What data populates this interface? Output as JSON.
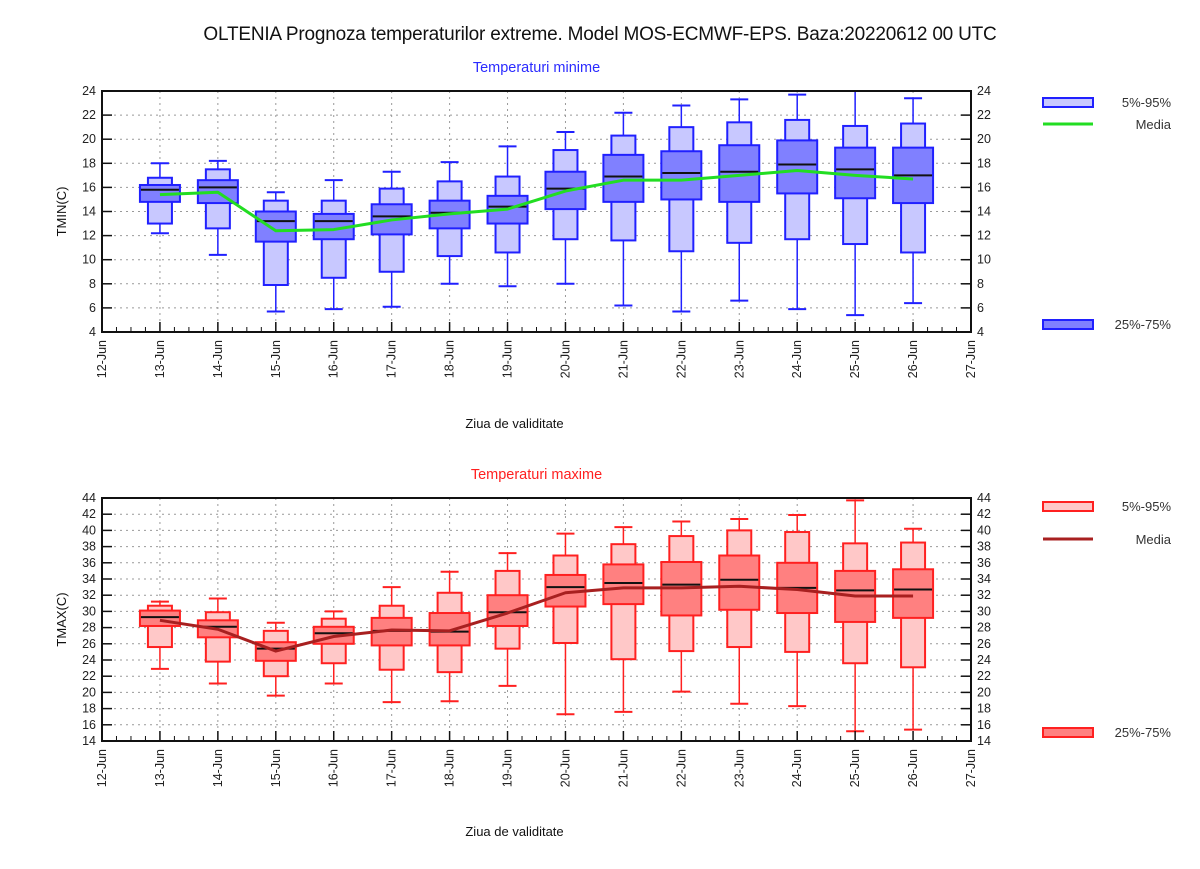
{
  "title": "OLTENIA  Prognoza temperaturilor extreme.  Model MOS-ECMWF-EPS. Baza:20220612 00 UTC",
  "chart_data": [
    {
      "type": "boxplot",
      "id": "tmin",
      "title": "Temperaturi minime",
      "title_color": "#2b2bff",
      "xlabel": "Ziua de validitate",
      "ylabel": "TMIN(C)",
      "ylim": [
        4,
        24
      ],
      "yticks": [
        4,
        6,
        8,
        10,
        12,
        14,
        16,
        18,
        20,
        22,
        24
      ],
      "xtick_labels": [
        "12-Jun",
        "13-Jun",
        "14-Jun",
        "15-Jun",
        "16-Jun",
        "17-Jun",
        "18-Jun",
        "19-Jun",
        "20-Jun",
        "21-Jun",
        "22-Jun",
        "23-Jun",
        "24-Jun",
        "25-Jun",
        "26-Jun",
        "27-Jun"
      ],
      "grid": true,
      "colors": {
        "outer_fill": "#c8c8ff",
        "inner_fill": "#8080ff",
        "stroke": "#2020ff",
        "median": "#111111",
        "mean_line": "#22dd22"
      },
      "legend": [
        {
          "label": "5%-95%",
          "kind": "outer-box",
          "position": "top-right"
        },
        {
          "label": "Media",
          "kind": "line",
          "position": "top-right"
        },
        {
          "label": "25%-75%",
          "kind": "inner-box",
          "position": "bottom-right"
        }
      ],
      "days": [
        "13-Jun",
        "14-Jun",
        "15-Jun",
        "16-Jun",
        "17-Jun",
        "18-Jun",
        "19-Jun",
        "20-Jun",
        "21-Jun",
        "22-Jun",
        "23-Jun",
        "24-Jun",
        "25-Jun",
        "26-Jun"
      ],
      "min": [
        12.2,
        10.4,
        5.7,
        5.9,
        6.1,
        8.0,
        7.8,
        8.0,
        6.2,
        5.7,
        6.6,
        5.9,
        5.4,
        6.4
      ],
      "p5": [
        13.0,
        12.6,
        7.9,
        8.5,
        9.0,
        10.3,
        10.6,
        11.7,
        11.6,
        10.7,
        11.4,
        11.7,
        11.3,
        10.6
      ],
      "p25": [
        14.8,
        14.7,
        11.5,
        11.7,
        12.1,
        12.6,
        13.0,
        14.2,
        14.8,
        15.0,
        14.8,
        15.5,
        15.1,
        14.7
      ],
      "median": [
        15.8,
        16.0,
        13.2,
        13.2,
        13.6,
        13.9,
        14.4,
        15.9,
        16.9,
        17.2,
        17.3,
        17.9,
        17.5,
        17.0
      ],
      "p75": [
        16.2,
        16.6,
        14.0,
        13.8,
        14.6,
        14.9,
        15.3,
        17.3,
        18.7,
        19.0,
        19.5,
        19.9,
        19.3,
        19.3
      ],
      "p95": [
        16.8,
        17.5,
        14.9,
        14.9,
        15.9,
        16.5,
        16.9,
        19.1,
        20.3,
        21.0,
        21.4,
        21.6,
        21.1,
        21.3
      ],
      "max": [
        18.0,
        18.2,
        15.6,
        16.6,
        17.3,
        18.1,
        19.4,
        20.6,
        22.2,
        22.8,
        23.3,
        23.7,
        24.0,
        23.4
      ],
      "mean": [
        15.4,
        15.6,
        12.4,
        12.5,
        13.3,
        13.8,
        14.2,
        15.7,
        16.6,
        16.6,
        17.0,
        17.4,
        17.0,
        16.7
      ]
    },
    {
      "type": "boxplot",
      "id": "tmax",
      "title": "Temperaturi maxime",
      "title_color": "#ff2020",
      "xlabel": "Ziua de validitate",
      "ylabel": "TMAX(C)",
      "ylim": [
        14,
        44
      ],
      "yticks": [
        14,
        16,
        18,
        20,
        22,
        24,
        26,
        28,
        30,
        32,
        34,
        36,
        38,
        40,
        42,
        44
      ],
      "xtick_labels": [
        "12-Jun",
        "13-Jun",
        "14-Jun",
        "15-Jun",
        "16-Jun",
        "17-Jun",
        "18-Jun",
        "19-Jun",
        "20-Jun",
        "21-Jun",
        "22-Jun",
        "23-Jun",
        "24-Jun",
        "25-Jun",
        "26-Jun",
        "27-Jun"
      ],
      "grid": true,
      "colors": {
        "outer_fill": "#ffc8c8",
        "inner_fill": "#ff8080",
        "stroke": "#ff2020",
        "median": "#111111",
        "mean_line": "#a82020"
      },
      "legend": [
        {
          "label": "5%-95%",
          "kind": "outer-box",
          "position": "top-right"
        },
        {
          "label": "Media",
          "kind": "line",
          "position": "top-right"
        },
        {
          "label": "25%-75%",
          "kind": "inner-box",
          "position": "bottom-right"
        }
      ],
      "days": [
        "13-Jun",
        "14-Jun",
        "15-Jun",
        "16-Jun",
        "17-Jun",
        "18-Jun",
        "19-Jun",
        "20-Jun",
        "21-Jun",
        "22-Jun",
        "23-Jun",
        "24-Jun",
        "25-Jun",
        "26-Jun"
      ],
      "min": [
        22.9,
        21.1,
        19.6,
        21.1,
        18.8,
        18.9,
        20.8,
        17.3,
        17.6,
        20.1,
        18.6,
        18.3,
        15.2,
        15.4
      ],
      "p5": [
        25.6,
        23.8,
        22.0,
        23.6,
        22.8,
        22.5,
        25.4,
        26.1,
        24.1,
        25.1,
        25.6,
        25.0,
        23.6,
        23.1
      ],
      "p25": [
        28.2,
        26.8,
        23.9,
        26.0,
        25.8,
        25.8,
        28.2,
        30.6,
        30.9,
        29.5,
        30.2,
        29.8,
        28.7,
        29.2
      ],
      "median": [
        29.3,
        28.1,
        25.4,
        27.3,
        27.6,
        27.5,
        29.9,
        33.0,
        33.5,
        33.3,
        33.9,
        32.9,
        32.6,
        32.7
      ],
      "p75": [
        30.1,
        28.9,
        26.2,
        28.1,
        29.2,
        29.8,
        32.0,
        34.5,
        35.8,
        36.1,
        36.9,
        36.0,
        35.0,
        35.2
      ],
      "p95": [
        30.7,
        29.9,
        27.6,
        29.1,
        30.7,
        32.3,
        35.0,
        36.9,
        38.3,
        39.3,
        40.0,
        39.8,
        38.4,
        38.5
      ],
      "max": [
        31.2,
        31.6,
        28.6,
        30.0,
        33.0,
        34.9,
        37.2,
        39.6,
        40.4,
        41.1,
        41.4,
        41.9,
        43.7,
        40.2
      ],
      "mean": [
        28.9,
        27.8,
        25.1,
        26.9,
        27.7,
        27.6,
        29.8,
        32.3,
        32.9,
        32.9,
        33.1,
        32.7,
        31.9,
        31.9
      ]
    }
  ]
}
